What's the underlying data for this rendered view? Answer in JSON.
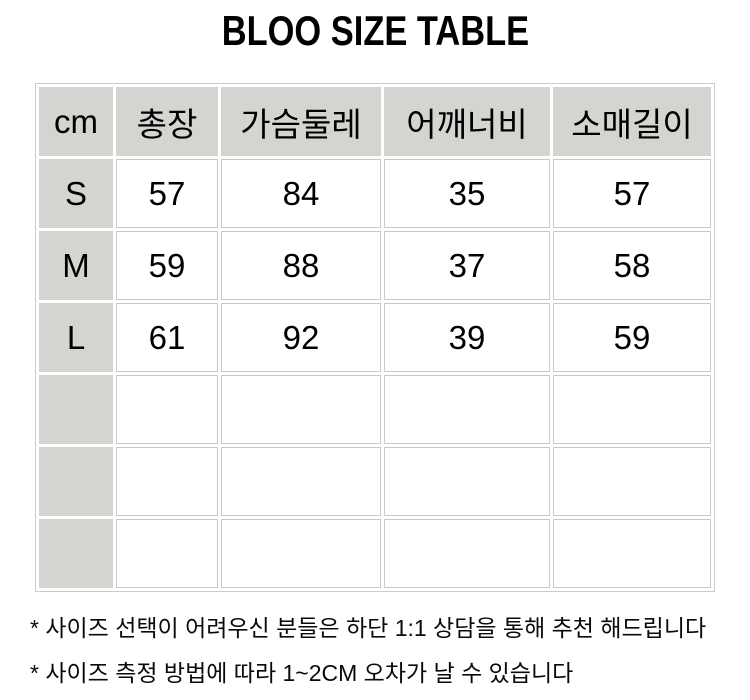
{
  "chart_data": {
    "type": "table",
    "title": "BLOO SIZE TABLE",
    "unit": "cm",
    "columns": [
      "cm",
      "총장",
      "가슴둘레",
      "어깨너비",
      "소매길이"
    ],
    "rows": [
      [
        "S",
        57,
        84,
        35,
        57
      ],
      [
        "M",
        59,
        88,
        37,
        58
      ],
      [
        "L",
        61,
        92,
        39,
        59
      ]
    ],
    "empty_row_count": 3,
    "notes": [
      "* 사이즈 선택이 어려우신 분들은 하단 1:1 상담을 통해 추천 해드립니다",
      "* 사이즈 측정 방법에 따라 1~2CM 오차가 날 수 있습니다"
    ],
    "layout_hints": {
      "header_row_filled": true,
      "first_column_filled": true,
      "cell_spacing_px": 3
    }
  },
  "colors": {
    "header_bg": "#d6d4d1",
    "cell_border": "#c9c9c9",
    "table_outer_border": "#cbcbcb",
    "text": "#000000",
    "background": "#ffffff"
  }
}
